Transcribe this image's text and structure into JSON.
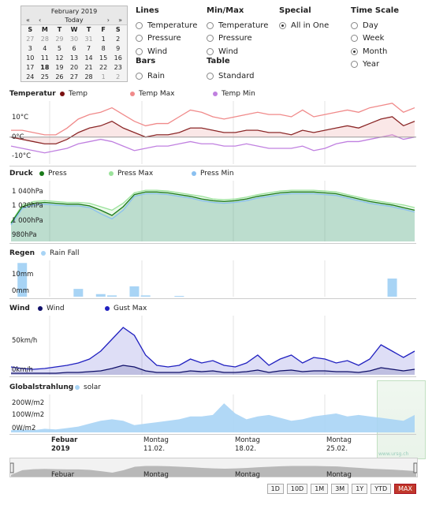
{
  "calendar": {
    "title": "February 2019",
    "prev_year": "«",
    "prev_month": "‹",
    "today": "Today",
    "next_month": "›",
    "next_year": "»",
    "dows": [
      "S",
      "M",
      "T",
      "W",
      "T",
      "F",
      "S"
    ],
    "weeks": [
      [
        "27",
        "28",
        "29",
        "30",
        "31",
        "1",
        "2"
      ],
      [
        "3",
        "4",
        "5",
        "6",
        "7",
        "8",
        "9"
      ],
      [
        "10",
        "11",
        "12",
        "13",
        "14",
        "15",
        "16"
      ],
      [
        "17",
        "18",
        "19",
        "20",
        "21",
        "22",
        "23"
      ],
      [
        "24",
        "25",
        "26",
        "27",
        "28",
        "1",
        "2"
      ]
    ]
  },
  "lines": {
    "title": "Lines",
    "options": [
      "Temperature",
      "Pressure",
      "Wind"
    ]
  },
  "minmax": {
    "title": "Min/Max",
    "options": [
      "Temperature",
      "Pressure",
      "Wind"
    ]
  },
  "special": {
    "title": "Special",
    "options": [
      "All in One"
    ]
  },
  "timescale": {
    "title": "Time Scale",
    "options": [
      "Day",
      "Week",
      "Month",
      "Year"
    ],
    "selected": "Month"
  },
  "bars": {
    "title": "Bars",
    "options": [
      "Rain"
    ]
  },
  "table": {
    "title": "Table",
    "options": [
      "Standard"
    ]
  },
  "temp": {
    "title": "Temperatur",
    "legend": [
      "Temp",
      "Temp Max",
      "Temp Min"
    ],
    "colors": [
      "#7a1010",
      "#f08a8a",
      "#c080e0"
    ],
    "yticks": [
      "10°C",
      "0°C",
      "-10°C"
    ]
  },
  "press": {
    "title": "Druck",
    "legend": [
      "Press",
      "Press Max",
      "Press Min"
    ],
    "colors": [
      "#1a7a1a",
      "#9be29b",
      "#8ac0f0"
    ],
    "yticks": [
      "1 040hPa",
      "1 020hPa",
      "1 000hPa",
      "980hPa"
    ]
  },
  "rain": {
    "title": "Regen",
    "legend": [
      "Rain Fall"
    ],
    "colors": [
      "#a8d4f5"
    ],
    "yticks": [
      "10mm",
      "0mm"
    ]
  },
  "wind": {
    "title": "Wind",
    "legend": [
      "Wind",
      "Gust Max"
    ],
    "colors": [
      "#10106a",
      "#2020c0"
    ],
    "yticks": [
      "50km/h",
      "0km/h"
    ]
  },
  "solar": {
    "title": "Globalstrahlung",
    "legend": [
      "solar"
    ],
    "colors": [
      "#a8d4f5"
    ],
    "yticks": [
      "200W/m2",
      "100W/m2",
      "0W/m2"
    ]
  },
  "xaxis": [
    {
      "l1": "Febuar",
      "l2": "2019",
      "bold": true
    },
    {
      "l1": "Montag",
      "l2": "11.02."
    },
    {
      "l1": "Montag",
      "l2": "18.02."
    },
    {
      "l1": "Montag",
      "l2": "25.02."
    }
  ],
  "navigator": [
    "Febuar",
    "Montag",
    "Montag",
    "Montag"
  ],
  "buttons": [
    "1D",
    "10D",
    "1M",
    "3M",
    "1Y",
    "YTD",
    "MAX"
  ],
  "active_button": "MAX",
  "watermark": "www.ursg.ch",
  "chart_data": [
    {
      "type": "line",
      "title": "Temperatur",
      "ylim": [
        -12,
        16
      ],
      "series": [
        {
          "name": "Temp Max",
          "values": [
            3,
            3,
            2,
            1,
            1,
            4,
            8,
            10,
            11,
            13,
            10,
            7,
            5,
            6,
            6,
            9,
            12,
            11,
            9,
            8,
            9,
            10,
            11,
            10,
            10,
            9,
            12,
            9,
            10,
            11,
            12,
            11,
            13,
            14,
            15,
            11,
            13
          ]
        },
        {
          "name": "Temp",
          "values": [
            0,
            -1,
            -2,
            -3,
            -3,
            -1,
            2,
            4,
            5,
            7,
            4,
            2,
            0,
            1,
            1,
            2,
            4,
            4,
            3,
            2,
            2,
            3,
            3,
            2,
            2,
            1,
            3,
            2,
            3,
            4,
            5,
            4,
            6,
            8,
            9,
            5,
            7
          ]
        },
        {
          "name": "Temp Min",
          "values": [
            -4,
            -5,
            -6,
            -7,
            -6,
            -5,
            -3,
            -2,
            -1,
            -2,
            -4,
            -6,
            -5,
            -4,
            -4,
            -3,
            -2,
            -3,
            -3,
            -4,
            -4,
            -3,
            -4,
            -5,
            -5,
            -5,
            -4,
            -6,
            -5,
            -3,
            -2,
            -2,
            -1,
            0,
            1,
            -1,
            0
          ]
        }
      ]
    },
    {
      "type": "area",
      "title": "Druck",
      "ylim": [
        978,
        1048
      ],
      "series": [
        {
          "name": "Press Max",
          "values": [
            1000,
            1020,
            1024,
            1025,
            1024,
            1023,
            1023,
            1022,
            1018,
            1014,
            1022,
            1034,
            1037,
            1037,
            1036,
            1034,
            1032,
            1030,
            1027,
            1026,
            1027,
            1029,
            1032,
            1034,
            1036,
            1037,
            1037,
            1037,
            1036,
            1035,
            1032,
            1029,
            1026,
            1024,
            1022,
            1020,
            1017
          ]
        },
        {
          "name": "Press",
          "values": [
            999,
            1018,
            1022,
            1023,
            1022,
            1021,
            1021,
            1019,
            1014,
            1008,
            1018,
            1032,
            1035,
            1035,
            1034,
            1032,
            1030,
            1027,
            1025,
            1024,
            1025,
            1027,
            1030,
            1032,
            1034,
            1035,
            1035,
            1035,
            1034,
            1033,
            1030,
            1027,
            1024,
            1022,
            1020,
            1017,
            1014
          ]
        },
        {
          "name": "Press Min",
          "values": [
            997,
            1016,
            1020,
            1021,
            1020,
            1019,
            1019,
            1017,
            1010,
            1004,
            1014,
            1030,
            1033,
            1033,
            1032,
            1030,
            1028,
            1025,
            1023,
            1022,
            1023,
            1025,
            1028,
            1030,
            1032,
            1033,
            1033,
            1033,
            1032,
            1031,
            1028,
            1025,
            1022,
            1020,
            1018,
            1015,
            1012
          ]
        }
      ]
    },
    {
      "type": "bar",
      "title": "Regen",
      "ylim": [
        0,
        14
      ],
      "series": [
        {
          "name": "Rain Fall",
          "values": [
            0,
            13,
            0,
            0,
            0,
            0,
            3,
            0,
            1,
            0.5,
            0,
            4,
            0.5,
            0,
            0,
            0.3,
            0,
            0,
            0,
            0,
            0,
            0,
            0,
            0,
            0,
            0,
            0,
            0,
            0,
            0,
            0,
            0,
            0,
            0,
            7,
            0,
            0
          ]
        }
      ]
    },
    {
      "type": "area",
      "title": "Wind",
      "ylim": [
        0,
        75
      ],
      "series": [
        {
          "name": "Gust Max",
          "values": [
            10,
            8,
            7,
            8,
            10,
            12,
            15,
            20,
            30,
            45,
            60,
            50,
            25,
            12,
            10,
            12,
            20,
            15,
            18,
            12,
            10,
            15,
            25,
            12,
            20,
            25,
            15,
            22,
            20,
            15,
            18,
            12,
            20,
            38,
            30,
            22,
            30
          ]
        },
        {
          "name": "Wind",
          "values": [
            2,
            2,
            2,
            2,
            2,
            3,
            3,
            4,
            5,
            8,
            12,
            10,
            5,
            3,
            3,
            3,
            5,
            4,
            5,
            3,
            3,
            4,
            6,
            3,
            5,
            6,
            4,
            5,
            5,
            4,
            4,
            3,
            5,
            9,
            7,
            5,
            7
          ]
        }
      ]
    },
    {
      "type": "area",
      "title": "Globalstrahlung",
      "ylim": [
        0,
        260
      ],
      "series": [
        {
          "name": "solar",
          "values": [
            15,
            20,
            15,
            25,
            20,
            30,
            40,
            60,
            80,
            90,
            80,
            50,
            60,
            70,
            80,
            90,
            110,
            110,
            120,
            200,
            130,
            90,
            110,
            120,
            100,
            80,
            90,
            110,
            120,
            130,
            110,
            120,
            110,
            100,
            90,
            80,
            120
          ]
        }
      ]
    }
  ]
}
